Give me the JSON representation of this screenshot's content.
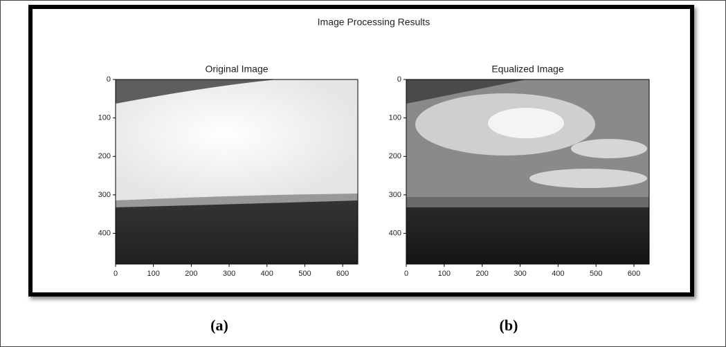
{
  "title": "Image Processing Results",
  "captions": [
    "(a)",
    "(b)"
  ],
  "chart_data": [
    {
      "type": "image",
      "title": "Original Image",
      "xlim": [
        0,
        640
      ],
      "ylim": [
        480,
        0
      ],
      "xticks": [
        0,
        100,
        200,
        300,
        400,
        500,
        600
      ],
      "yticks": [
        0,
        100,
        200,
        300,
        400
      ]
    },
    {
      "type": "image",
      "title": "Equalized Image",
      "xlim": [
        0,
        640
      ],
      "ylim": [
        480,
        0
      ],
      "xticks": [
        0,
        100,
        200,
        300,
        400,
        500,
        600
      ],
      "yticks": [
        0,
        100,
        200,
        300,
        400
      ]
    }
  ]
}
